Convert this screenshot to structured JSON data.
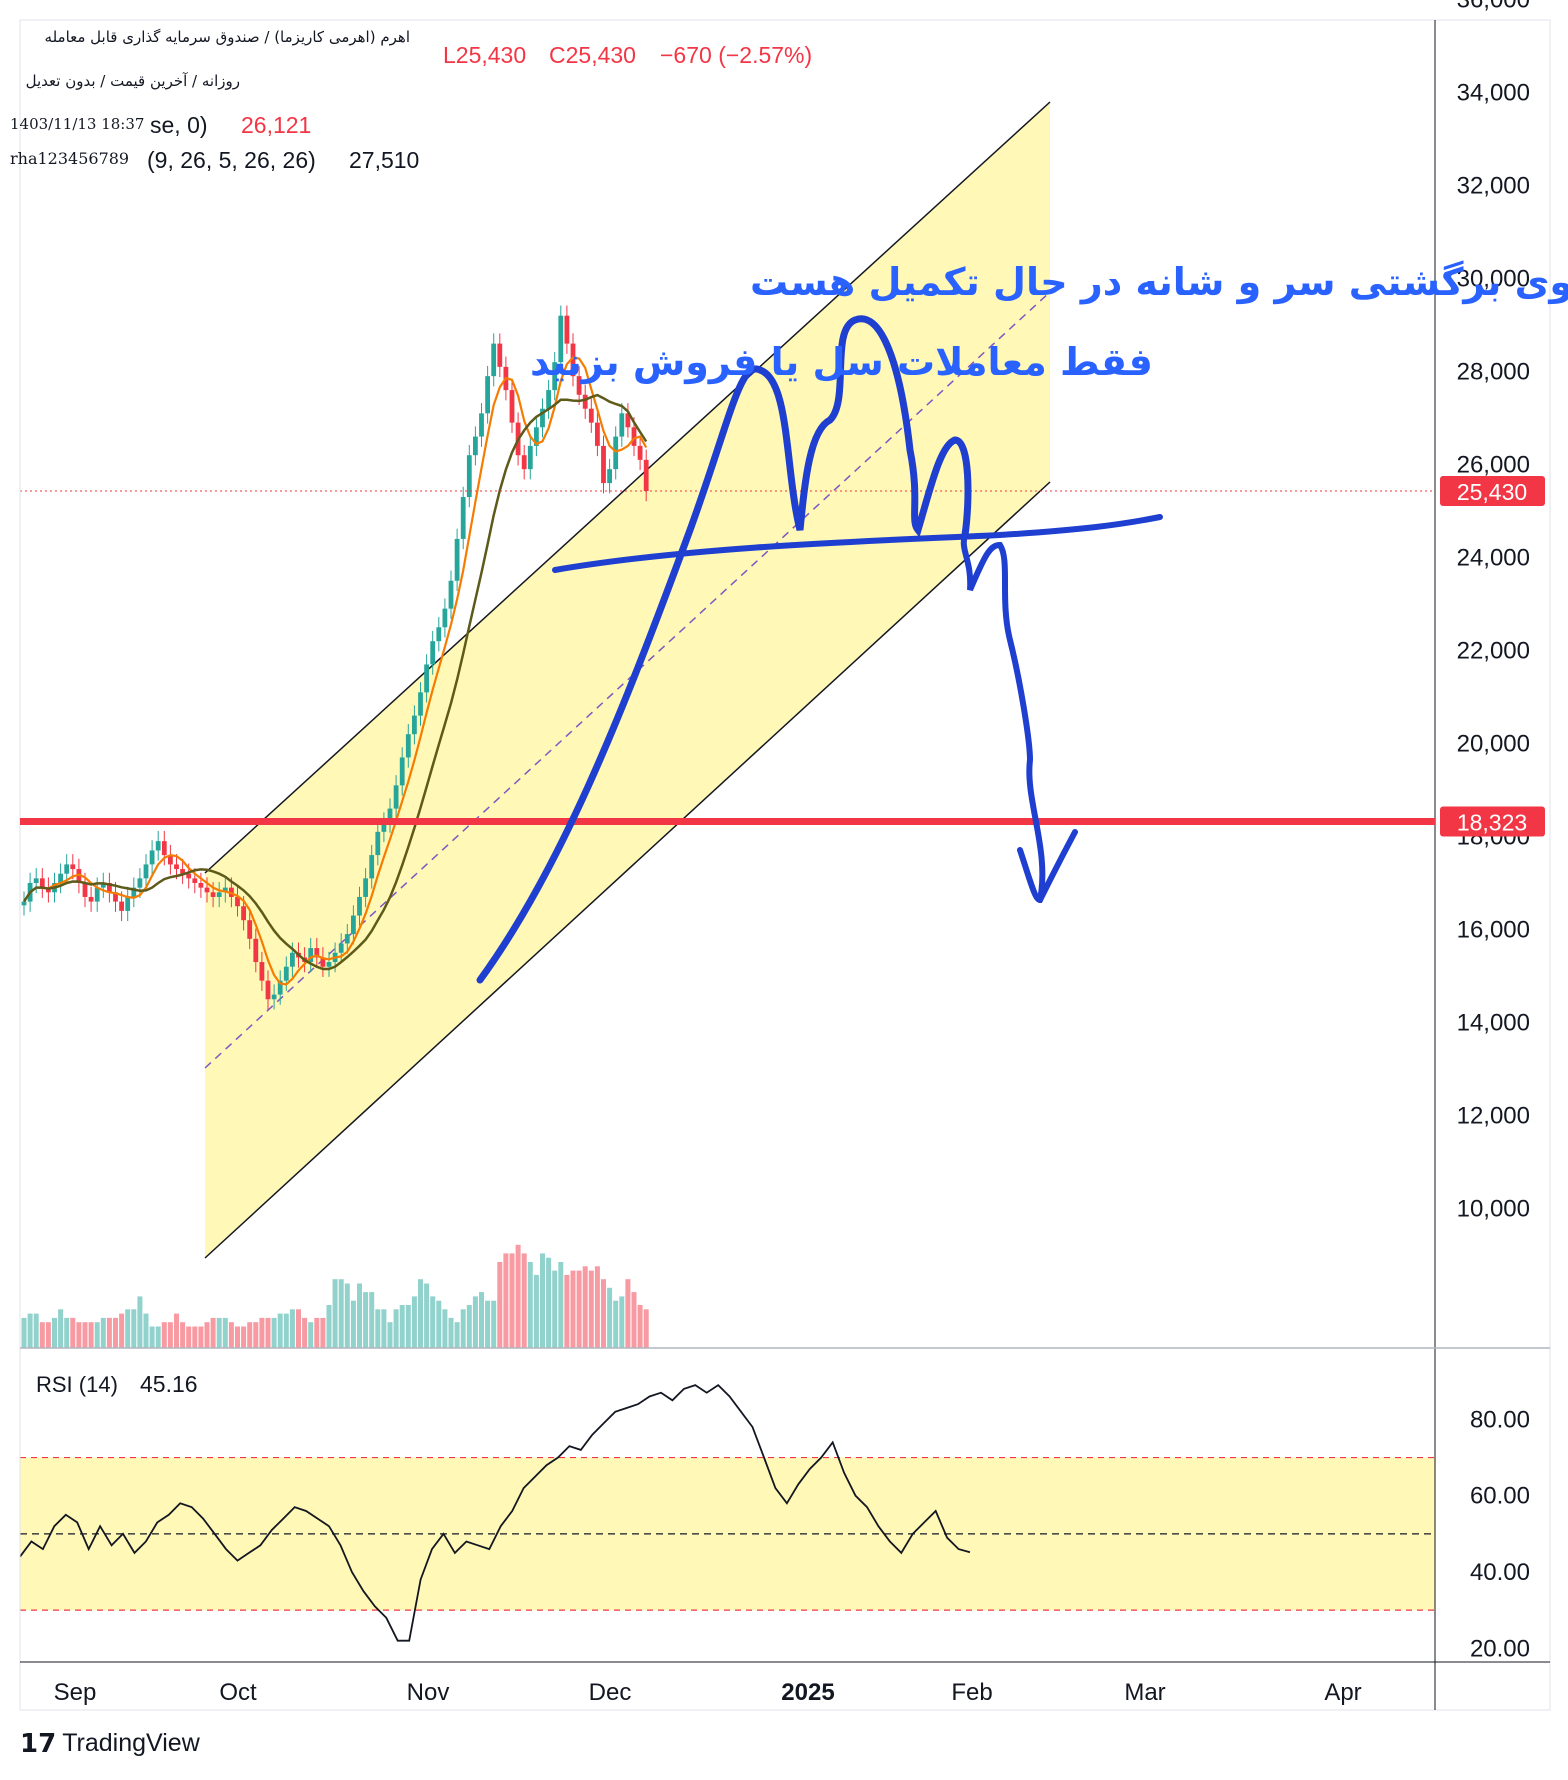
{
  "header": {
    "symbol_title": "اهرم (اهرمی کاریزما) / صندوق سرمایه گذاری قابل معامله",
    "symbol_sub": "روزانه / آخرین قیمت / بدون تعدیل",
    "timestamp": "1403/11/13 18:37",
    "author": "rha123456789",
    "ohlc_low": "L25,430",
    "ohlc_close": "C25,430",
    "ohlc_change": "−670 (−2.57%)",
    "ma_params": "se, 0)",
    "ma_value": "26,121",
    "ichimoku_params": "(9, 26, 5, 26, 26)",
    "ichimoku_value": "27,510"
  },
  "annotations": {
    "line1": "الگوی برگشتی سر و شانه در حال تکمیل هست",
    "line2": "فقط معاملات سل یا فروش بزنید"
  },
  "price_axis": {
    "ticks": [
      "36,000",
      "34,000",
      "32,000",
      "30,000",
      "28,000",
      "26,000",
      "24,000",
      "22,000",
      "20,000",
      "18,000",
      "16,000",
      "14,000",
      "12,000",
      "10,000"
    ],
    "last_price_label": "25,430",
    "support_label": "18,323"
  },
  "rsi_panel": {
    "label": "RSI (14)",
    "value": "45.16",
    "ticks": [
      "80.00",
      "60.00",
      "40.00",
      "20.00"
    ]
  },
  "time_axis": {
    "labels": [
      "Sep",
      "Oct",
      "Nov",
      "Dec",
      "2025",
      "Feb",
      "Mar",
      "Apr"
    ]
  },
  "branding": {
    "name": "TradingView"
  },
  "colors": {
    "up": "#26a69a",
    "down": "#f23645",
    "channel_fill": "#fff59d",
    "drawing_blue": "#1e3fd0",
    "support_red": "#f23645",
    "annotation_blue": "#2962ff"
  },
  "chart_data": [
    {
      "type": "candlestick",
      "title": "اهرم (اهرمی کاریزما) / صندوق سرمایه گذاری قابل معامله",
      "interval": "daily",
      "y_unit": "price",
      "ylim": [
        8000,
        36500
      ],
      "last_price": 25430,
      "support_level": 18323,
      "x_axis_labels": [
        "Sep",
        "Oct",
        "Nov",
        "Dec",
        "2025",
        "Feb",
        "Mar",
        "Apr"
      ],
      "close_path": [
        16600,
        17000,
        17100,
        16900,
        16800,
        17000,
        17200,
        17400,
        17300,
        17000,
        16700,
        16600,
        16900,
        17000,
        16800,
        16600,
        16400,
        16700,
        16900,
        17100,
        17400,
        17700,
        17900,
        17600,
        17400,
        17300,
        17200,
        17100,
        17000,
        16900,
        16800,
        16700,
        16800,
        16900,
        16700,
        16500,
        16200,
        15800,
        15300,
        14900,
        14500,
        14600,
        14900,
        15200,
        15500,
        15400,
        15300,
        15600,
        15400,
        15200,
        15300,
        15500,
        15700,
        15900,
        16300,
        16700,
        17100,
        17600,
        18100,
        18300,
        18600,
        19100,
        19700,
        20200,
        20600,
        21100,
        21700,
        22200,
        22500,
        22900,
        23500,
        24400,
        25300,
        26200,
        26600,
        27100,
        27900,
        28600,
        28100,
        27600,
        26900,
        26200,
        25900,
        26400,
        26800,
        27200,
        27600,
        28200,
        29200,
        28600,
        27900,
        27500,
        27200,
        26900,
        26400,
        25600,
        25900,
        26600,
        27100,
        26800,
        26400,
        26100,
        25430
      ],
      "volume_path": [
        7,
        8,
        8,
        6,
        6,
        7,
        9,
        7,
        7,
        6,
        6,
        6,
        6,
        7,
        7,
        7,
        8,
        9,
        9,
        12,
        8,
        5,
        5,
        6,
        6,
        8,
        6,
        5,
        5,
        5,
        6,
        7,
        7,
        7,
        6,
        5,
        5,
        6,
        6,
        7,
        7,
        7,
        8,
        8,
        9,
        9,
        7,
        6,
        7,
        7,
        10,
        16,
        16,
        15,
        11,
        15,
        13,
        13,
        9,
        9,
        6,
        9,
        10,
        10,
        12,
        16,
        15,
        12,
        11,
        9,
        7,
        6,
        9,
        10,
        12,
        13,
        11,
        11,
        20,
        22,
        22,
        24,
        22,
        20,
        17,
        22,
        21,
        18,
        20,
        17,
        18,
        18,
        19,
        18,
        19,
        16,
        14,
        11,
        12,
        16,
        13,
        10,
        9
      ]
    },
    {
      "type": "line",
      "title": "RSI (14)",
      "ylim": [
        16,
        96
      ],
      "levels": {
        "upper": 70,
        "middle": 50,
        "lower": 30
      },
      "last_value": 45.16,
      "x_axis_labels": [
        "Sep",
        "Oct",
        "Nov",
        "Dec",
        "2025",
        "Feb",
        "Mar",
        "Apr"
      ],
      "values": [
        44,
        48,
        46,
        52,
        55,
        53,
        46,
        52,
        47,
        50,
        45,
        48,
        53,
        55,
        58,
        57,
        54,
        50,
        46,
        43,
        45,
        47,
        51,
        54,
        57,
        56,
        54,
        52,
        47,
        40,
        35,
        31,
        28,
        22,
        22,
        38,
        46,
        50,
        45,
        48,
        47,
        46,
        52,
        56,
        62,
        65,
        68,
        70,
        73,
        72,
        76,
        79,
        82,
        83,
        84,
        86,
        87,
        85,
        88,
        89,
        87,
        89,
        86,
        82,
        78,
        70,
        62,
        58,
        63,
        67,
        70,
        74,
        66,
        60,
        57,
        52,
        48,
        45,
        50,
        53,
        56,
        49,
        46,
        45.16
      ]
    }
  ]
}
